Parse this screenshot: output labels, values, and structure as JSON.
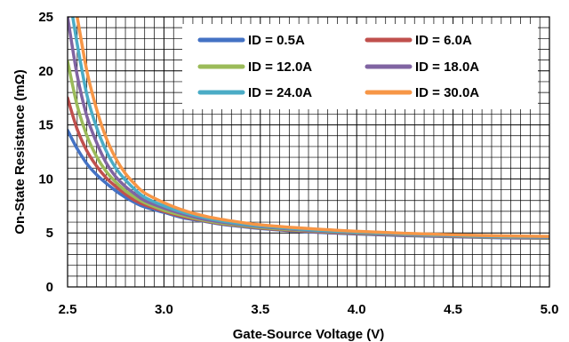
{
  "chart_data": {
    "type": "line",
    "title": "",
    "xlabel": "Gate-Source Voltage (V)",
    "ylabel": "On-State Resistance (mΩ)",
    "xlim": [
      2.5,
      5.0
    ],
    "ylim": [
      0,
      25
    ],
    "x_ticks": [
      "2.5",
      "3.0",
      "3.5",
      "4.0",
      "4.5",
      "5.0"
    ],
    "y_ticks": [
      "0",
      "5",
      "10",
      "15",
      "20",
      "25"
    ],
    "grid": true,
    "legend_position": "top-right",
    "x": [
      2.5,
      2.55,
      2.6,
      2.65,
      2.7,
      2.75,
      2.8,
      2.85,
      2.9,
      3.0,
      3.1,
      3.2,
      3.3,
      3.4,
      3.5,
      3.75,
      4.0,
      4.25,
      4.5,
      4.75,
      5.0
    ],
    "series": [
      {
        "name": "ID = 0.5A",
        "color": "#4472C4",
        "values": [
          14.5,
          12.8,
          11.4,
          10.4,
          9.6,
          8.9,
          8.3,
          7.8,
          7.4,
          6.9,
          6.4,
          6.1,
          5.8,
          5.6,
          5.4,
          5.1,
          4.9,
          4.75,
          4.65,
          4.55,
          4.5
        ]
      },
      {
        "name": "ID = 6.0A",
        "color": "#C0504D",
        "values": [
          17.5,
          14.6,
          12.6,
          11.2,
          10.1,
          9.3,
          8.6,
          8.0,
          7.6,
          7.0,
          6.5,
          6.15,
          5.85,
          5.65,
          5.45,
          5.15,
          4.95,
          4.8,
          4.68,
          4.58,
          4.52
        ]
      },
      {
        "name": "ID = 12.0A",
        "color": "#9BBB59",
        "values": [
          20.9,
          16.8,
          14.0,
          12.1,
          10.7,
          9.7,
          8.9,
          8.3,
          7.8,
          7.1,
          6.6,
          6.2,
          5.9,
          5.7,
          5.5,
          5.2,
          5.0,
          4.83,
          4.7,
          4.6,
          4.55
        ]
      },
      {
        "name": "ID = 18.0A",
        "color": "#8064A2",
        "values": [
          25.0,
          19.6,
          15.8,
          13.4,
          11.5,
          10.2,
          9.3,
          8.6,
          8.0,
          7.3,
          6.75,
          6.3,
          6.0,
          5.78,
          5.58,
          5.25,
          5.03,
          4.86,
          4.73,
          4.63,
          4.58
        ]
      },
      {
        "name": "ID = 24.0A",
        "color": "#4BACC6",
        "values": [
          28.0,
          22.5,
          17.8,
          14.8,
          12.6,
          11.0,
          9.9,
          9.0,
          8.3,
          7.5,
          6.9,
          6.45,
          6.1,
          5.85,
          5.65,
          5.3,
          5.07,
          4.9,
          4.77,
          4.67,
          4.62
        ]
      },
      {
        "name": "ID = 30.0A",
        "color": "#F79646",
        "values": [
          30.0,
          25.0,
          20.0,
          16.5,
          13.8,
          11.9,
          10.5,
          9.5,
          8.7,
          7.8,
          7.1,
          6.6,
          6.25,
          5.98,
          5.75,
          5.4,
          5.15,
          4.97,
          4.83,
          4.73,
          4.68
        ]
      }
    ]
  }
}
